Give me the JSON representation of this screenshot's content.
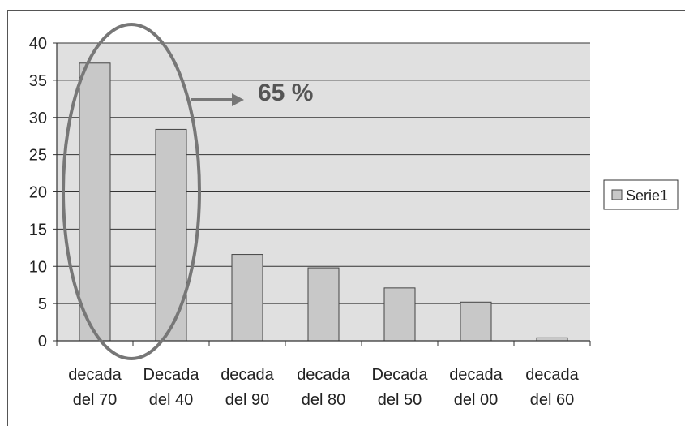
{
  "chart_data": {
    "type": "bar",
    "categories": [
      [
        "decada",
        "del 70"
      ],
      [
        "Decada",
        "del 40"
      ],
      [
        "decada",
        "del 90"
      ],
      [
        "decada",
        "del 80"
      ],
      [
        "Decada",
        "del 50"
      ],
      [
        "decada",
        "del 00"
      ],
      [
        "decada",
        "del 60"
      ]
    ],
    "series": [
      {
        "name": "Serie1",
        "values": [
          37.3,
          28.4,
          11.6,
          9.8,
          7.1,
          5.2,
          0.4
        ]
      }
    ],
    "ylim": [
      0,
      40
    ],
    "yticks": [
      0,
      5,
      10,
      15,
      20,
      25,
      30,
      35,
      40
    ],
    "grid": true,
    "legend": "right",
    "annotation": "65 %",
    "colors": {
      "bar_fill": "#c8c8c8",
      "bar_stroke": "#444444",
      "plot_bg": "#e0e0e0",
      "ellipse": "#777777",
      "arrow": "#777777"
    }
  }
}
